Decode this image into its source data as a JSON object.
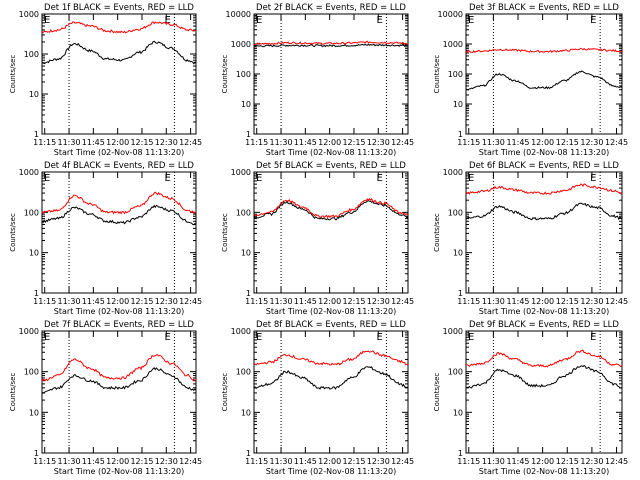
{
  "x_axis_label": "Start Time (02-Nov-08 11:13:20)",
  "y_axis_label": "Counts/sec",
  "x_tick_labels": [
    "11:15",
    "11:30",
    "11:45",
    "12:00",
    "12:15",
    "12:30",
    "12:45"
  ],
  "y_tick_labels": [
    "1",
    "10",
    "100",
    "1000"
  ],
  "marker_labels": {
    "left": "E",
    "right": "E"
  },
  "colors": {
    "events": "#000000",
    "lld": "#ff0000",
    "frame": "#000000",
    "dotted": "#000000"
  },
  "chart_data": [
    {
      "type": "line",
      "title": "Det 1f BLACK = Events, RED = LLD",
      "xlabel": "Start Time (02-Nov-08 11:13:20)",
      "ylabel": "Counts/sec",
      "x_range_min": [
        0,
        95
      ],
      "yscale": "log",
      "ylim": [
        1,
        1000
      ],
      "vlines_min": [
        16.7,
        81.7
      ],
      "x": [
        0,
        10,
        20,
        30,
        40,
        50,
        60,
        70,
        80,
        90,
        95
      ],
      "series": [
        {
          "name": "BLACK = Events",
          "values": [
            60,
            75,
            180,
            120,
            75,
            70,
            110,
            200,
            140,
            70,
            60
          ]
        },
        {
          "name": "RED = LLD",
          "values": [
            350,
            400,
            600,
            500,
            380,
            350,
            420,
            620,
            550,
            400,
            380
          ]
        }
      ]
    },
    {
      "type": "line",
      "title": "Det 2f BLACK = Events, RED = LLD",
      "xlabel": "Start Time (02-Nov-08 11:13:20)",
      "ylabel": "Counts/sec",
      "x_range_min": [
        0,
        95
      ],
      "yscale": "log",
      "ylim": [
        1,
        10000
      ],
      "vlines_min": [
        16.7,
        81.7
      ],
      "x": [
        0,
        10,
        20,
        30,
        40,
        50,
        60,
        70,
        80,
        90,
        95
      ],
      "series": [
        {
          "name": "BLACK = Events",
          "values": [
            850,
            870,
            900,
            900,
            880,
            880,
            900,
            940,
            920,
            900,
            880
          ]
        },
        {
          "name": "RED = LLD",
          "values": [
            1000,
            1030,
            1100,
            1080,
            1050,
            1050,
            1080,
            1150,
            1120,
            1080,
            1050
          ]
        }
      ]
    },
    {
      "type": "line",
      "title": "Det 3f BLACK = Events, RED = LLD",
      "xlabel": "Start Time (02-Nov-08 11:13:20)",
      "ylabel": "Counts/sec",
      "x_range_min": [
        0,
        95
      ],
      "yscale": "log",
      "ylim": [
        1,
        10000
      ],
      "vlines_min": [
        16.7,
        81.7
      ],
      "x": [
        0,
        10,
        20,
        30,
        40,
        50,
        60,
        70,
        80,
        90,
        95
      ],
      "series": [
        {
          "name": "BLACK = Events",
          "values": [
            30,
            40,
            100,
            60,
            35,
            35,
            60,
            120,
            80,
            40,
            35
          ]
        },
        {
          "name": "RED = LLD",
          "values": [
            550,
            580,
            650,
            620,
            570,
            560,
            600,
            680,
            650,
            600,
            580
          ]
        }
      ]
    },
    {
      "type": "line",
      "title": "Det 4f BLACK = Events, RED = LLD",
      "xlabel": "Start Time (02-Nov-08 11:13:20)",
      "ylabel": "Counts/sec",
      "x_range_min": [
        0,
        95
      ],
      "yscale": "log",
      "ylim": [
        1,
        1000
      ],
      "vlines_min": [
        16.7,
        81.7
      ],
      "x": [
        0,
        10,
        20,
        30,
        40,
        50,
        60,
        70,
        80,
        90,
        95
      ],
      "series": [
        {
          "name": "BLACK = Events",
          "values": [
            60,
            70,
            130,
            90,
            60,
            55,
            75,
            140,
            110,
            60,
            50
          ]
        },
        {
          "name": "RED = LLD",
          "values": [
            100,
            110,
            260,
            160,
            100,
            100,
            140,
            300,
            220,
            110,
            100
          ]
        }
      ]
    },
    {
      "type": "line",
      "title": "Det 5f BLACK = Events, RED = LLD",
      "xlabel": "Start Time (02-Nov-08 11:13:20)",
      "ylabel": "Counts/sec",
      "x_range_min": [
        0,
        95
      ],
      "yscale": "log",
      "ylim": [
        1,
        1000
      ],
      "vlines_min": [
        16.7,
        81.7
      ],
      "x": [
        0,
        10,
        20,
        30,
        40,
        50,
        60,
        70,
        80,
        90,
        95
      ],
      "series": [
        {
          "name": "BLACK = Events",
          "values": [
            75,
            90,
            180,
            120,
            70,
            70,
            100,
            190,
            150,
            90,
            75
          ]
        },
        {
          "name": "RED = LLD",
          "values": [
            85,
            100,
            200,
            135,
            80,
            80,
            115,
            210,
            170,
            100,
            85
          ]
        }
      ]
    },
    {
      "type": "line",
      "title": "Det 6f BLACK = Events, RED = LLD",
      "xlabel": "Start Time (02-Nov-08 11:13:20)",
      "ylabel": "Counts/sec",
      "x_range_min": [
        0,
        95
      ],
      "yscale": "log",
      "ylim": [
        1,
        1000
      ],
      "vlines_min": [
        16.7,
        81.7
      ],
      "x": [
        0,
        10,
        20,
        30,
        40,
        50,
        60,
        70,
        80,
        90,
        95
      ],
      "series": [
        {
          "name": "BLACK = Events",
          "values": [
            70,
            80,
            140,
            100,
            70,
            70,
            95,
            160,
            130,
            80,
            70
          ]
        },
        {
          "name": "RED = LLD",
          "values": [
            300,
            330,
            420,
            360,
            300,
            300,
            350,
            480,
            420,
            340,
            300
          ]
        }
      ]
    },
    {
      "type": "line",
      "title": "Det 7f BLACK = Events, RED = LLD",
      "xlabel": "Start Time (02-Nov-08 11:13:20)",
      "ylabel": "Counts/sec",
      "x_range_min": [
        0,
        95
      ],
      "yscale": "log",
      "ylim": [
        1,
        1000
      ],
      "vlines_min": [
        16.7,
        81.7
      ],
      "x": [
        0,
        10,
        20,
        30,
        40,
        50,
        60,
        70,
        80,
        90,
        95
      ],
      "series": [
        {
          "name": "BLACK = Events",
          "values": [
            30,
            40,
            80,
            60,
            40,
            40,
            60,
            120,
            80,
            40,
            35
          ]
        },
        {
          "name": "RED = LLD",
          "values": [
            60,
            80,
            200,
            120,
            70,
            70,
            120,
            260,
            160,
            80,
            60
          ]
        }
      ]
    },
    {
      "type": "line",
      "title": "Det 8f BLACK = Events, RED = LLD",
      "xlabel": "Start Time (02-Nov-08 11:13:20)",
      "ylabel": "Counts/sec",
      "x_range_min": [
        0,
        95
      ],
      "yscale": "log",
      "ylim": [
        1,
        1000
      ],
      "vlines_min": [
        16.7,
        81.7
      ],
      "x": [
        0,
        10,
        20,
        30,
        40,
        50,
        60,
        70,
        80,
        90,
        95
      ],
      "series": [
        {
          "name": "BLACK = Events",
          "values": [
            40,
            50,
            100,
            70,
            40,
            40,
            70,
            130,
            90,
            50,
            40
          ]
        },
        {
          "name": "RED = LLD",
          "values": [
            150,
            170,
            260,
            200,
            160,
            150,
            200,
            330,
            250,
            180,
            150
          ]
        }
      ]
    },
    {
      "type": "line",
      "title": "Det 9f BLACK = Events, RED = LLD",
      "xlabel": "Start Time (02-Nov-08 11:13:20)",
      "ylabel": "Counts/sec",
      "x_range_min": [
        0,
        95
      ],
      "yscale": "log",
      "ylim": [
        1,
        1000
      ],
      "vlines_min": [
        16.7,
        81.7
      ],
      "x": [
        0,
        10,
        20,
        30,
        40,
        50,
        60,
        70,
        80,
        90,
        95
      ],
      "series": [
        {
          "name": "BLACK = Events",
          "values": [
            40,
            50,
            110,
            80,
            45,
            45,
            80,
            140,
            100,
            50,
            40
          ]
        },
        {
          "name": "RED = LLD",
          "values": [
            140,
            160,
            280,
            200,
            140,
            140,
            200,
            320,
            240,
            150,
            140
          ]
        }
      ]
    }
  ]
}
